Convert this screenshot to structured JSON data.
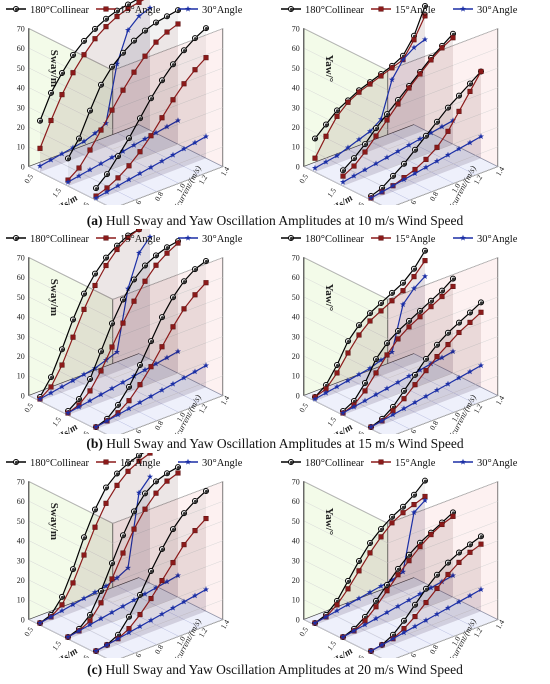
{
  "captions": [
    {
      "label": "(a)",
      "text": "Hull Sway and Yaw Oscillation Amplitudes at 10 m/s Wind Speed"
    },
    {
      "label": "(b)",
      "text": "Hull Sway and Yaw Oscillation Amplitudes at 15 m/s Wind Speed"
    },
    {
      "label": "(c)",
      "text": "Hull Sway and Yaw Oscillation Amplitudes at 20 m/s Wind Speed"
    }
  ],
  "legend": [
    {
      "name": "180°Collinear",
      "color": "#000000",
      "marker": "circle"
    },
    {
      "name": "15°Angle",
      "color": "#8b1a1a",
      "marker": "square"
    },
    {
      "name": "30°Angle",
      "color": "#1b2fa6",
      "marker": "star"
    }
  ],
  "axes": {
    "z_ticks": [
      "0",
      "10",
      "20",
      "30",
      "40",
      "50",
      "60",
      "70"
    ],
    "hs_ticks": [
      "0.5",
      "1.5",
      "2.5"
    ],
    "hs_label": "Hs/m",
    "v_ticks": [
      "0.4",
      "0.6",
      "0.8",
      "1.0",
      "1.2",
      "1.4"
    ],
    "v_label": "Vcurrent/(m/s)"
  },
  "chart_data": [
    {
      "type": "line",
      "panel": "a-left",
      "ylabel": "Sway/m",
      "zlim": [
        0,
        70
      ],
      "x_label": "Vcurrent/(m/s)",
      "depth_label": "Hs/m",
      "x": [
        0.4,
        0.5,
        0.6,
        0.7,
        0.8,
        0.9,
        1.0,
        1.1,
        1.2,
        1.3,
        1.4
      ],
      "depth_categories": [
        "0.5",
        "1.5",
        "2.5"
      ],
      "series": [
        {
          "name": "180°Collinear",
          "color": "#000000",
          "by_hs": [
            [
              26,
              38,
              46,
              53,
              58,
              62,
              65,
              67,
              68,
              69,
              70
            ],
            [
              14,
              22,
              34,
              45,
              52,
              57,
              61,
              64,
              66,
              67,
              68
            ],
            [
              6,
              11,
              18,
              25,
              33,
              41,
              48,
              54,
              59,
              63,
              66
            ]
          ]
        },
        {
          "name": "15°Angle",
          "color": "#8b1a1a",
          "by_hs": [
            [
              12,
              24,
              35,
              44,
              51,
              57,
              61,
              64,
              66,
              67,
              68
            ],
            [
              3,
              7,
              14,
              22,
              30,
              38,
              45,
              51,
              56,
              59,
              61
            ],
            [
              2,
              4,
              7,
              11,
              16,
              22,
              29,
              36,
              42,
              47,
              51
            ]
          ]
        },
        {
          "name": "30°Angle",
          "color": "#1b2fa6",
          "by_hs": [
            [
              3,
              4,
              5,
              6,
              7,
              9,
              12,
              40,
              55,
              60,
              62
            ],
            [
              2,
              3,
              4,
              5,
              6,
              7,
              8,
              9,
              10,
              11,
              12
            ],
            [
              1,
              2,
              3,
              4,
              5,
              6,
              7,
              8,
              9,
              10,
              11
            ]
          ]
        }
      ]
    },
    {
      "type": "line",
      "panel": "a-right",
      "ylabel": "Yaw/°",
      "zlim": [
        0,
        70
      ],
      "x_label": "Vcurrent/(m/s)",
      "depth_label": "Hs/m",
      "x": [
        0.4,
        0.5,
        0.6,
        0.7,
        0.8,
        0.9,
        1.0,
        1.1,
        1.2,
        1.3,
        1.4
      ],
      "depth_categories": [
        "0.5",
        "1.5",
        "2.5"
      ],
      "series": [
        {
          "name": "180°Collinear",
          "color": "#000000",
          "by_hs": [
            [
              17,
              22,
              27,
              30,
              33,
              35,
              37,
              39,
              42,
              50,
              63
            ],
            [
              8,
              12,
              17,
              23,
              28,
              33,
              38,
              43,
              48,
              52,
              56
            ],
            [
              2,
              4,
              8,
              12,
              17,
              22,
              27,
              32,
              36,
              40,
              44
            ]
          ]
        },
        {
          "name": "15°Angle",
          "color": "#8b1a1a",
          "by_hs": [
            [
              7,
              16,
              24,
              29,
              32,
              34,
              36,
              38,
              40,
              48,
              58
            ],
            [
              5,
              8,
              13,
              19,
              25,
              31,
              37,
              42,
              47,
              51,
              54
            ],
            [
              1,
              2,
              3,
              5,
              7,
              10,
              14,
              20,
              28,
              36,
              44
            ]
          ]
        },
        {
          "name": "30°Angle",
          "color": "#1b2fa6",
          "by_hs": [
            [
              2,
              3,
              4,
              6,
              8,
              10,
              14,
              32,
              40,
              44,
              46
            ],
            [
              2,
              3,
              4,
              5,
              6,
              7,
              8,
              9,
              10,
              11,
              12
            ],
            [
              1,
              2,
              3,
              4,
              5,
              6,
              7,
              8,
              9,
              10,
              11
            ]
          ]
        }
      ]
    },
    {
      "type": "line",
      "panel": "b-left",
      "ylabel": "Sway/m",
      "zlim": [
        0,
        70
      ],
      "x_label": "Vcurrent/(m/s)",
      "depth_label": "Hs/m",
      "x": [
        0.4,
        0.5,
        0.6,
        0.7,
        0.8,
        0.9,
        1.0,
        1.1,
        1.2,
        1.3,
        1.4
      ],
      "depth_categories": [
        "0.5",
        "1.5",
        "2.5"
      ],
      "series": [
        {
          "name": "180°Collinear",
          "color": "#000000",
          "by_hs": [
            [
              2,
              10,
              22,
              35,
              46,
              54,
              60,
              64,
              67,
              68,
              69
            ],
            [
              2,
              6,
              14,
              26,
              38,
              48,
              56,
              61,
              64,
              66,
              67
            ],
            [
              1,
              3,
              8,
              15,
              24,
              34,
              44,
              52,
              58,
              62,
              64
            ]
          ]
        },
        {
          "name": "15°Angle",
          "color": "#8b1a1a",
          "by_hs": [
            [
              1,
              5,
              14,
              26,
              38,
              48,
              56,
              62,
              66,
              68,
              69
            ],
            [
              1,
              3,
              8,
              16,
              26,
              36,
              45,
              53,
              59,
              63,
              66
            ],
            [
              1,
              2,
              4,
              8,
              14,
              21,
              29,
              37,
              44,
              49,
              53
            ]
          ]
        },
        {
          "name": "30°Angle",
          "color": "#1b2fa6",
          "by_hs": [
            [
              1,
              2,
              3,
              4,
              5,
              6,
              8,
              10,
              40,
              56,
              62
            ],
            [
              1,
              2,
              3,
              4,
              5,
              6,
              7,
              8,
              9,
              10,
              11
            ],
            [
              1,
              2,
              3,
              4,
              5,
              6,
              7,
              8,
              9,
              10,
              11
            ]
          ]
        }
      ]
    },
    {
      "type": "line",
      "panel": "b-right",
      "ylabel": "Yaw/°",
      "zlim": [
        0,
        70
      ],
      "x_label": "Vcurrent/(m/s)",
      "depth_label": "Hs/m",
      "x": [
        0.4,
        0.5,
        0.6,
        0.7,
        0.8,
        0.9,
        1.0,
        1.1,
        1.2,
        1.3,
        1.4
      ],
      "depth_categories": [
        "0.5",
        "1.5",
        "2.5"
      ],
      "series": [
        {
          "name": "180°Collinear",
          "color": "#000000",
          "by_hs": [
            [
              2,
              6,
              14,
              24,
              30,
              34,
              37,
              40,
              43,
              48,
              55
            ],
            [
              2,
              5,
              12,
              22,
              28,
              32,
              35,
              38,
              41,
              44,
              48
            ],
            [
              1,
              3,
              7,
              13,
              19,
              25,
              30,
              34,
              37,
              40,
              43
            ]
          ]
        },
        {
          "name": "15°Angle",
          "color": "#8b1a1a",
          "by_hs": [
            [
              2,
              4,
              10,
              18,
              25,
              30,
              33,
              36,
              39,
              44,
              50
            ],
            [
              1,
              3,
              8,
              15,
              22,
              28,
              32,
              35,
              38,
              41,
              44
            ],
            [
              1,
              2,
              5,
              9,
              14,
              19,
              24,
              28,
              32,
              35,
              38
            ]
          ]
        },
        {
          "name": "30°Angle",
          "color": "#1b2fa6",
          "by_hs": [
            [
              1,
              2,
              3,
              4,
              5,
              6,
              8,
              10,
              32,
              38,
              42
            ],
            [
              1,
              2,
              3,
              4,
              5,
              6,
              7,
              8,
              9,
              10,
              11
            ],
            [
              1,
              2,
              3,
              4,
              5,
              6,
              7,
              8,
              9,
              10,
              11
            ]
          ]
        }
      ]
    },
    {
      "type": "line",
      "panel": "c-left",
      "ylabel": "Sway/m",
      "zlim": [
        0,
        70
      ],
      "x_label": "Vcurrent/(m/s)",
      "depth_label": "Hs/m",
      "x": [
        0.4,
        0.5,
        0.6,
        0.7,
        0.8,
        0.9,
        1.0,
        1.1,
        1.2,
        1.3,
        1.4
      ],
      "depth_categories": [
        "0.5",
        "1.5",
        "2.5"
      ],
      "series": [
        {
          "name": "180°Collinear",
          "color": "#000000",
          "by_hs": [
            [
              1,
              3,
              10,
              22,
              36,
              48,
              57,
              62,
              65,
              67,
              68
            ],
            [
              1,
              3,
              8,
              18,
              30,
              42,
              52,
              59,
              63,
              65,
              66
            ],
            [
              1,
              2,
              5,
              12,
              21,
              31,
              40,
              48,
              54,
              58,
              61
            ]
          ]
        },
        {
          "name": "15°Angle",
          "color": "#8b1a1a",
          "by_hs": [
            [
              1,
              2,
              6,
              15,
              27,
              39,
              49,
              56,
              61,
              64,
              66
            ],
            [
              1,
              2,
              5,
              12,
              22,
              33,
              43,
              51,
              57,
              61,
              63
            ],
            [
              1,
              2,
              3,
              6,
              11,
              17,
              24,
              31,
              38,
              43,
              47
            ]
          ]
        },
        {
          "name": "30°Angle",
          "color": "#1b2fa6",
          "by_hs": [
            [
              1,
              2,
              3,
              4,
              5,
              6,
              7,
              9,
              12,
              48,
              54
            ],
            [
              1,
              2,
              3,
              4,
              5,
              6,
              7,
              8,
              9,
              10,
              11
            ],
            [
              1,
              2,
              3,
              4,
              5,
              6,
              7,
              8,
              9,
              10,
              11
            ]
          ]
        }
      ]
    },
    {
      "type": "line",
      "panel": "c-right",
      "ylabel": "Yaw/°",
      "zlim": [
        0,
        70
      ],
      "x_label": "Vcurrent/(m/s)",
      "depth_label": "Hs/m",
      "x": [
        0.4,
        0.5,
        0.6,
        0.7,
        0.8,
        0.9,
        1.0,
        1.1,
        1.2,
        1.3,
        1.4
      ],
      "depth_categories": [
        "0.5",
        "1.5",
        "2.5"
      ],
      "series": [
        {
          "name": "180°Collinear",
          "color": "#000000",
          "by_hs": [
            [
              1,
              3,
              8,
              16,
              24,
              31,
              36,
              40,
              43,
              47,
              52
            ],
            [
              1,
              3,
              7,
              13,
              19,
              25,
              30,
              34,
              37,
              40,
              43
            ],
            [
              1,
              2,
              5,
              10,
              16,
              22,
              27,
              31,
              34,
              36,
              38
            ]
          ]
        },
        {
          "name": "15°Angle",
          "color": "#8b1a1a",
          "by_hs": [
            [
              1,
              2,
              6,
              12,
              19,
              26,
              32,
              37,
              40,
              42,
              44
            ],
            [
              1,
              2,
              5,
              10,
              16,
              22,
              27,
              32,
              36,
              39,
              41
            ],
            [
              1,
              2,
              3,
              6,
              10,
              15,
              20,
              25,
              29,
              32,
              34
            ]
          ]
        },
        {
          "name": "30°Angle",
          "color": "#1b2fa6",
          "by_hs": [
            [
              1,
              2,
              3,
              4,
              5,
              6,
              7,
              8,
              10,
              38,
              42
            ],
            [
              1,
              2,
              3,
              4,
              5,
              6,
              7,
              8,
              9,
              10,
              11
            ],
            [
              1,
              2,
              3,
              4,
              5,
              6,
              7,
              8,
              9,
              10,
              11
            ]
          ]
        }
      ]
    }
  ]
}
